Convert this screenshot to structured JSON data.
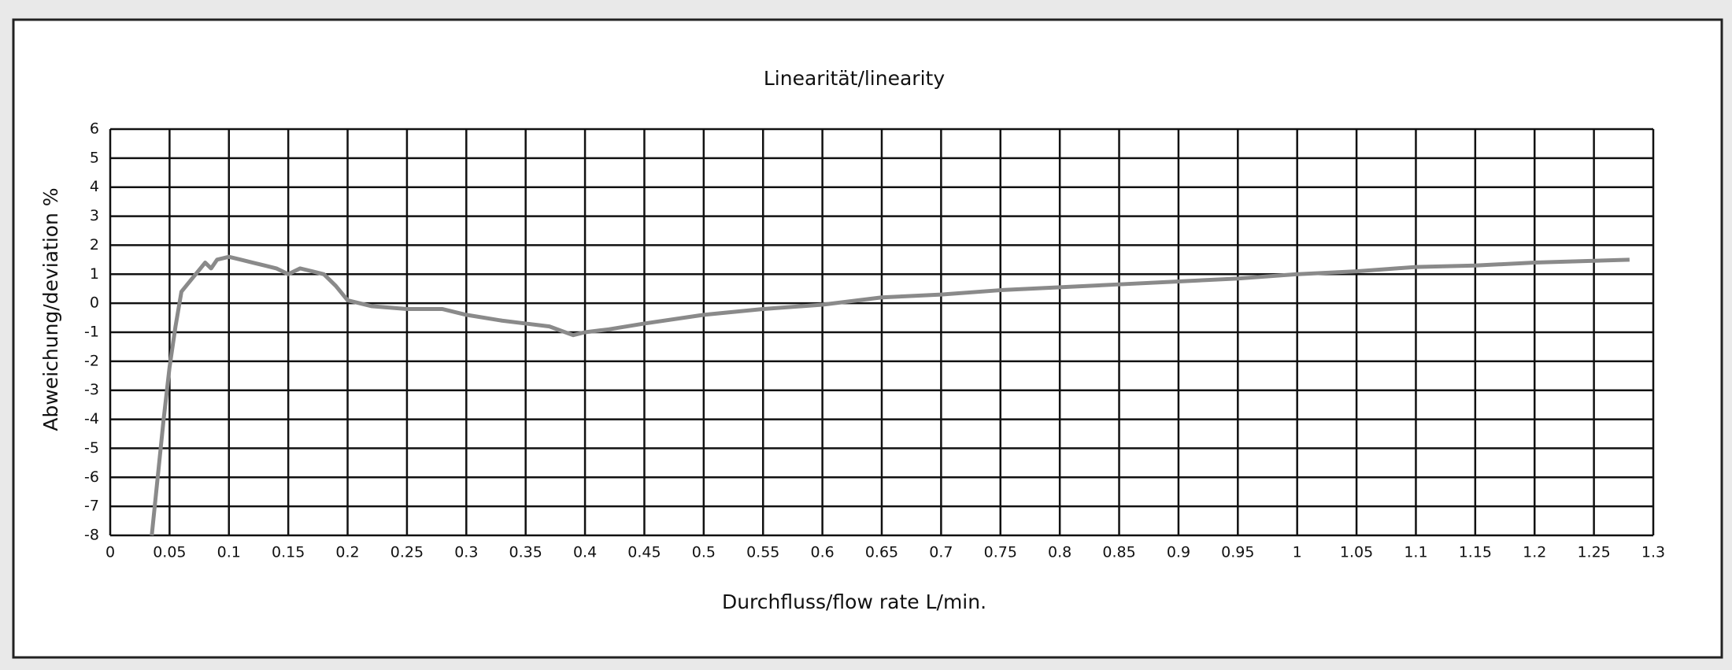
{
  "chart_data": {
    "type": "line",
    "title": "Linearität/linearity",
    "xlabel": "Durchfluss/flow rate L/min.",
    "ylabel": "Abweichung/deviation %",
    "x": [
      0.035,
      0.045,
      0.05,
      0.055,
      0.06,
      0.07,
      0.08,
      0.085,
      0.09,
      0.1,
      0.11,
      0.12,
      0.13,
      0.14,
      0.15,
      0.16,
      0.17,
      0.18,
      0.19,
      0.2,
      0.22,
      0.25,
      0.28,
      0.3,
      0.33,
      0.35,
      0.37,
      0.39,
      0.4,
      0.42,
      0.45,
      0.5,
      0.55,
      0.6,
      0.65,
      0.7,
      0.75,
      0.8,
      0.85,
      0.9,
      0.95,
      1.0,
      1.05,
      1.1,
      1.15,
      1.2,
      1.28
    ],
    "series": [
      {
        "name": "linearity",
        "color": "#8a8a8a",
        "values": [
          -8,
          -4,
          -2.2,
          -0.8,
          0.4,
          0.9,
          1.4,
          1.2,
          1.5,
          1.6,
          1.5,
          1.4,
          1.3,
          1.2,
          1.0,
          1.2,
          1.1,
          1.0,
          0.6,
          0.1,
          -0.1,
          -0.2,
          -0.2,
          -0.4,
          -0.6,
          -0.7,
          -0.8,
          -1.1,
          -1.0,
          -0.9,
          -0.7,
          -0.4,
          -0.2,
          -0.05,
          0.2,
          0.3,
          0.45,
          0.55,
          0.65,
          0.75,
          0.85,
          1.0,
          1.1,
          1.25,
          1.3,
          1.4,
          1.5
        ]
      }
    ],
    "xlim": [
      0,
      1.3
    ],
    "xticks": [
      0,
      0.05,
      0.1,
      0.15,
      0.2,
      0.25,
      0.3,
      0.35,
      0.4,
      0.45,
      0.5,
      0.55,
      0.6,
      0.65,
      0.7,
      0.75,
      0.8,
      0.85,
      0.9,
      0.95,
      1,
      1.05,
      1.1,
      1.15,
      1.2,
      1.25,
      1.3
    ],
    "ylim": [
      -8,
      6
    ],
    "yticks": [
      -8,
      -7,
      -6,
      -5,
      -4,
      -3,
      -2,
      -1,
      0,
      1,
      2,
      3,
      4,
      5,
      6
    ],
    "grid": true
  }
}
